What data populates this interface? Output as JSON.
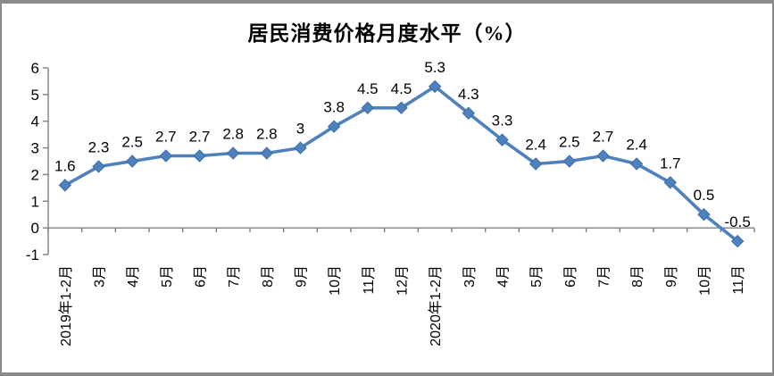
{
  "chart_data": {
    "type": "line",
    "title": "居民消费价格月度水平（%）",
    "categories": [
      "2019年1-2月",
      "3月",
      "4月",
      "5月",
      "6月",
      "7月",
      "8月",
      "9月",
      "10月",
      "11月",
      "12月",
      "2020年1-2月",
      "3月",
      "4月",
      "5月",
      "6月",
      "7月",
      "8月",
      "9月",
      "10月",
      "11月"
    ],
    "values": [
      1.6,
      2.3,
      2.5,
      2.7,
      2.7,
      2.8,
      2.8,
      3,
      3.8,
      4.5,
      4.5,
      5.3,
      4.3,
      3.3,
      2.4,
      2.5,
      2.7,
      2.4,
      1.7,
      0.5,
      -0.5
    ],
    "data_labels": [
      "1.6",
      "2.3",
      "2.5",
      "2.7",
      "2.7",
      "2.8",
      "2.8",
      "3",
      "3.8",
      "4.5",
      "4.5",
      "5.3",
      "4.3",
      "3.3",
      "2.4",
      "2.5",
      "2.7",
      "2.4",
      "1.7",
      "0.5",
      "-0.5"
    ],
    "yticks": [
      6,
      5,
      4,
      3,
      2,
      1,
      0,
      -1
    ],
    "ylim": [
      -1,
      6
    ],
    "xlabel": "",
    "ylabel": "",
    "grid": false,
    "legend": "none",
    "line_color": "#4F81BD",
    "marker_shape": "diamond",
    "marker_border_color": "#3A6DA8",
    "axis_color": "#808080",
    "text_color": "#000000"
  }
}
